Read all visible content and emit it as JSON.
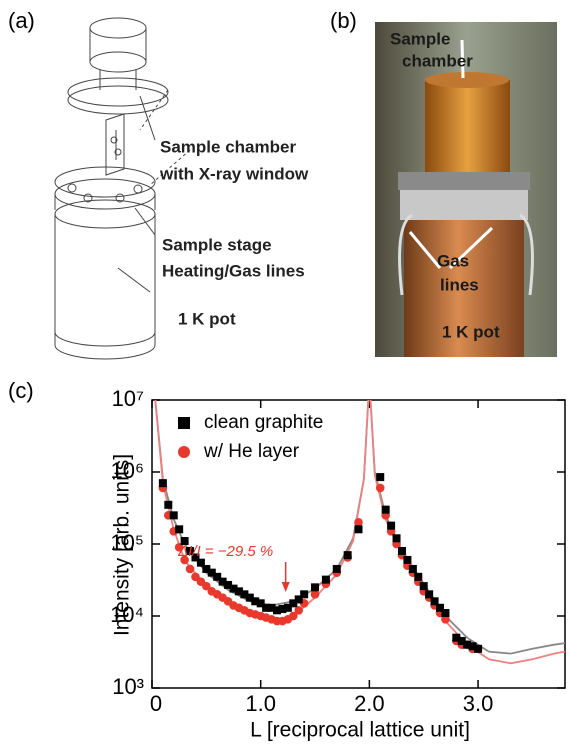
{
  "panels": {
    "a": {
      "label": "(a)",
      "annotations": [
        "Sample chamber",
        "with X-ray window",
        "Sample stage",
        "Heating/Gas lines",
        "1 K pot"
      ]
    },
    "b": {
      "label": "(b)",
      "annotations": [
        "Sample",
        "chamber",
        "Gas",
        "lines",
        "1 K pot"
      ]
    }
  },
  "chart_data": {
    "type": "scatter",
    "panel_label": "(c)",
    "x_label": "L [reciprocal lattice unit]",
    "y_label": "Intensity [arb. units]",
    "annotation": "ΔI/I = −29.5 %",
    "annotation_x": 1.23,
    "log_y": true,
    "legend": "upper-left",
    "xlim": [
      0,
      3.8
    ],
    "ylim": [
      1000,
      10000000
    ],
    "xticks": [
      0,
      {
        "value": 1,
        "label": "1.0"
      },
      {
        "value": 2,
        "label": "2.0"
      },
      {
        "value": 3,
        "label": "3.0"
      }
    ],
    "yticks": [
      {
        "value": 1000,
        "label": "10³"
      },
      {
        "value": 10000,
        "label": "10⁴"
      },
      {
        "value": 100000,
        "label": "10⁵"
      },
      {
        "value": 1000000,
        "label": "10⁶"
      },
      {
        "value": 10000000,
        "label": "10⁷"
      }
    ],
    "series": [
      {
        "name": "clean graphite",
        "color": "#000000",
        "marker": "square",
        "x": [
          0.1,
          0.15,
          0.2,
          0.25,
          0.3,
          0.35,
          0.4,
          0.45,
          0.5,
          0.55,
          0.6,
          0.65,
          0.7,
          0.75,
          0.8,
          0.85,
          0.9,
          0.95,
          1.0,
          1.05,
          1.1,
          1.15,
          1.2,
          1.25,
          1.3,
          1.35,
          1.4,
          1.5,
          1.6,
          1.7,
          1.8,
          1.9,
          2.1,
          2.15,
          2.2,
          2.25,
          2.3,
          2.35,
          2.4,
          2.45,
          2.5,
          2.55,
          2.6,
          2.65,
          2.7,
          2.8,
          2.85,
          2.9,
          2.95,
          3.0
        ],
        "values": [
          700000,
          350000,
          250000,
          160000,
          110000,
          80000,
          65000,
          55000,
          45000,
          40000,
          35000,
          30000,
          27000,
          24000,
          22000,
          20000,
          18000,
          16000,
          15000,
          13000,
          13000,
          12000,
          12500,
          13000,
          15000,
          17000,
          20000,
          25000,
          32000,
          45000,
          70000,
          160000,
          850000,
          300000,
          180000,
          120000,
          80000,
          60000,
          45000,
          35000,
          26000,
          20000,
          16000,
          13000,
          11000,
          5000,
          4500,
          4000,
          3800,
          3500
        ]
      },
      {
        "name": "w/ He layer",
        "color": "#e8392c",
        "marker": "circle",
        "x": [
          0.1,
          0.15,
          0.2,
          0.25,
          0.3,
          0.35,
          0.4,
          0.45,
          0.5,
          0.55,
          0.6,
          0.65,
          0.7,
          0.75,
          0.8,
          0.85,
          0.9,
          0.95,
          1.0,
          1.05,
          1.1,
          1.15,
          1.2,
          1.25,
          1.3,
          1.35,
          1.4,
          1.5,
          1.6,
          1.7,
          1.8,
          1.9,
          2.1,
          2.15,
          2.2,
          2.25,
          2.3,
          2.35,
          2.4,
          2.45,
          2.5,
          2.55,
          2.6,
          2.65,
          2.7,
          2.8,
          2.85,
          2.9,
          2.95,
          3.0
        ],
        "values": [
          600000,
          250000,
          150000,
          90000,
          60000,
          45000,
          35000,
          30000,
          26000,
          22000,
          20000,
          18000,
          16000,
          14000,
          13000,
          12000,
          11000,
          10500,
          10000,
          9500,
          9000,
          8500,
          8500,
          9000,
          10000,
          12000,
          15000,
          20000,
          28000,
          40000,
          65000,
          200000,
          600000,
          250000,
          150000,
          100000,
          70000,
          50000,
          40000,
          30000,
          22000,
          18000,
          14000,
          11000,
          9000,
          4500,
          4000,
          4000,
          3500,
          3500
        ]
      },
      {
        "color": "#888888",
        "marker": "line",
        "x": [
          0.03,
          0.1,
          0.2,
          0.3,
          0.5,
          0.7,
          0.9,
          1.1,
          1.3,
          1.5,
          1.7,
          1.85,
          1.95,
          1.99,
          null,
          2.01,
          2.05,
          2.15,
          2.3,
          2.5,
          2.7,
          2.9,
          3.1,
          3.3,
          3.5,
          3.7,
          3.8
        ],
        "values": [
          10000000,
          800000,
          220000,
          100000,
          40000,
          23000,
          16000,
          14000,
          16000,
          24000,
          45000,
          120000,
          800000,
          10000000,
          null,
          10000000,
          1000000,
          250000,
          80000,
          28000,
          10000,
          5000,
          3200,
          3000,
          3500,
          4000,
          4200
        ]
      },
      {
        "color": "#f08080",
        "marker": "line",
        "x": [
          0.03,
          0.1,
          0.2,
          0.3,
          0.5,
          0.7,
          0.9,
          1.1,
          1.3,
          1.5,
          1.7,
          1.85,
          1.95,
          1.99,
          null,
          2.01,
          2.05,
          2.15,
          2.3,
          2.5,
          2.7,
          2.9,
          3.1,
          3.3,
          3.5,
          3.7,
          3.8
        ],
        "values": [
          10000000,
          700000,
          160000,
          60000,
          25000,
          15000,
          10500,
          8500,
          10000,
          18000,
          38000,
          110000,
          800000,
          10000000,
          null,
          10000000,
          900000,
          220000,
          70000,
          24000,
          8500,
          4000,
          2500,
          2200,
          2500,
          3000,
          3200
        ]
      }
    ]
  }
}
